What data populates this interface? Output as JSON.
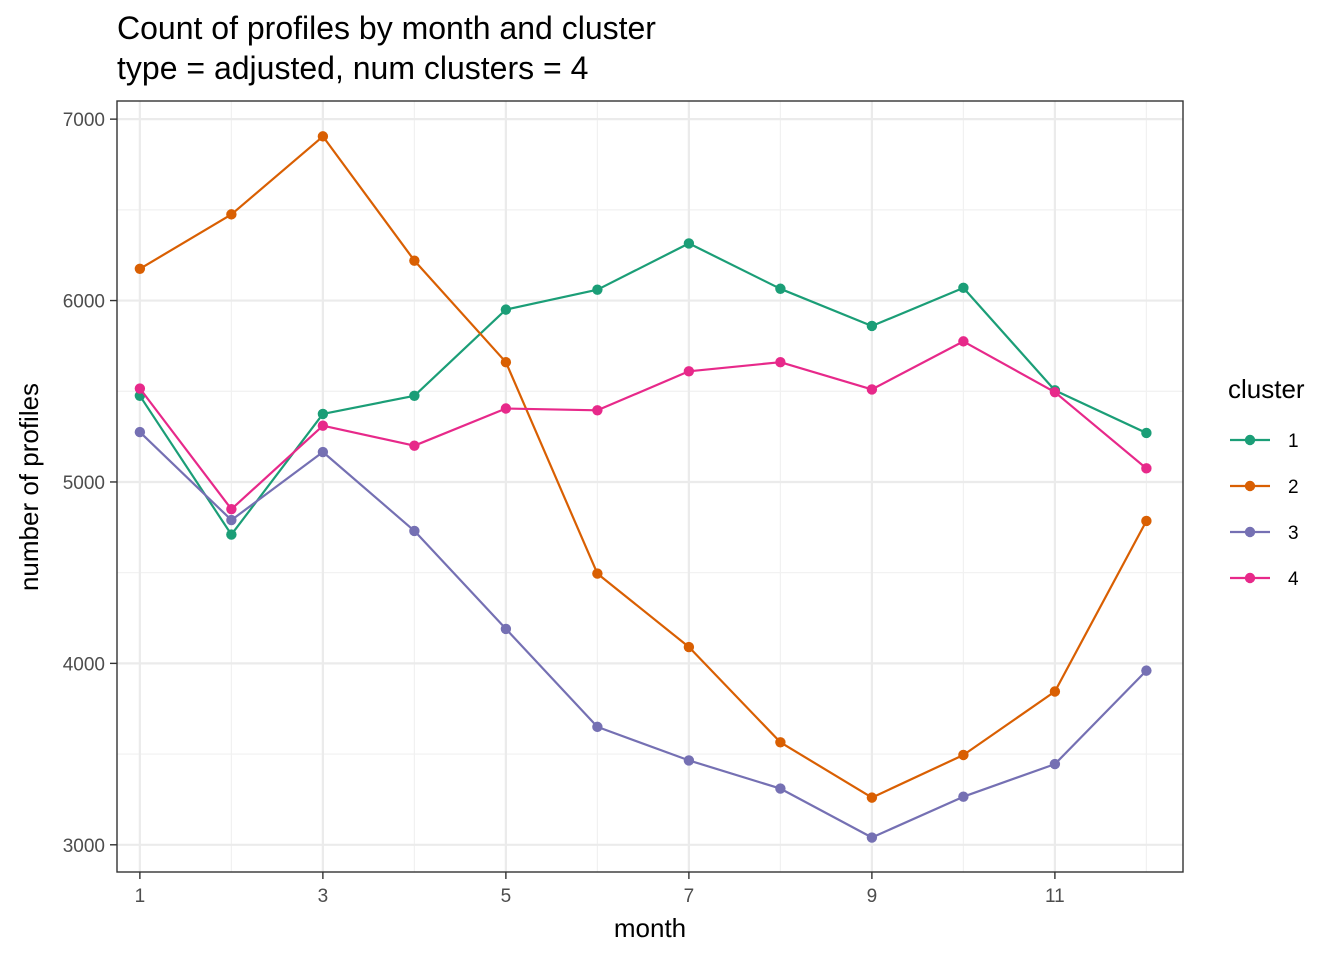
{
  "chart_data": {
    "type": "line",
    "title": "Count of profiles by month and cluster",
    "subtitle": "type = adjusted, num clusters = 4",
    "xlabel": "month",
    "ylabel": "number of profiles",
    "xlim": [
      0.75,
      12.4
    ],
    "ylim": [
      2850,
      7100
    ],
    "x_ticks": [
      1,
      3,
      5,
      7,
      9,
      11
    ],
    "y_ticks": [
      3000,
      4000,
      5000,
      6000,
      7000
    ],
    "grid": true,
    "legend": {
      "title": "cluster",
      "position": "right"
    },
    "x": [
      1,
      2,
      3,
      4,
      5,
      6,
      7,
      8,
      9,
      10,
      11,
      12
    ],
    "series": [
      {
        "name": "1",
        "color": "#1b9e77",
        "values": [
          5475,
          4710,
          5375,
          5475,
          5950,
          6060,
          6315,
          6065,
          5860,
          6070,
          5505,
          5270
        ]
      },
      {
        "name": "2",
        "color": "#d95f02",
        "values": [
          6175,
          6475,
          6905,
          6220,
          5660,
          4495,
          4090,
          3565,
          3260,
          3495,
          3845,
          4785
        ]
      },
      {
        "name": "3",
        "color": "#7570b3",
        "values": [
          5275,
          4790,
          5165,
          4730,
          4190,
          3650,
          3465,
          3310,
          3040,
          3265,
          3445,
          3960
        ]
      },
      {
        "name": "4",
        "color": "#e7298a",
        "values": [
          5515,
          4850,
          5310,
          5200,
          5405,
          5395,
          5610,
          5660,
          5510,
          5775,
          5495,
          5075
        ]
      }
    ]
  }
}
